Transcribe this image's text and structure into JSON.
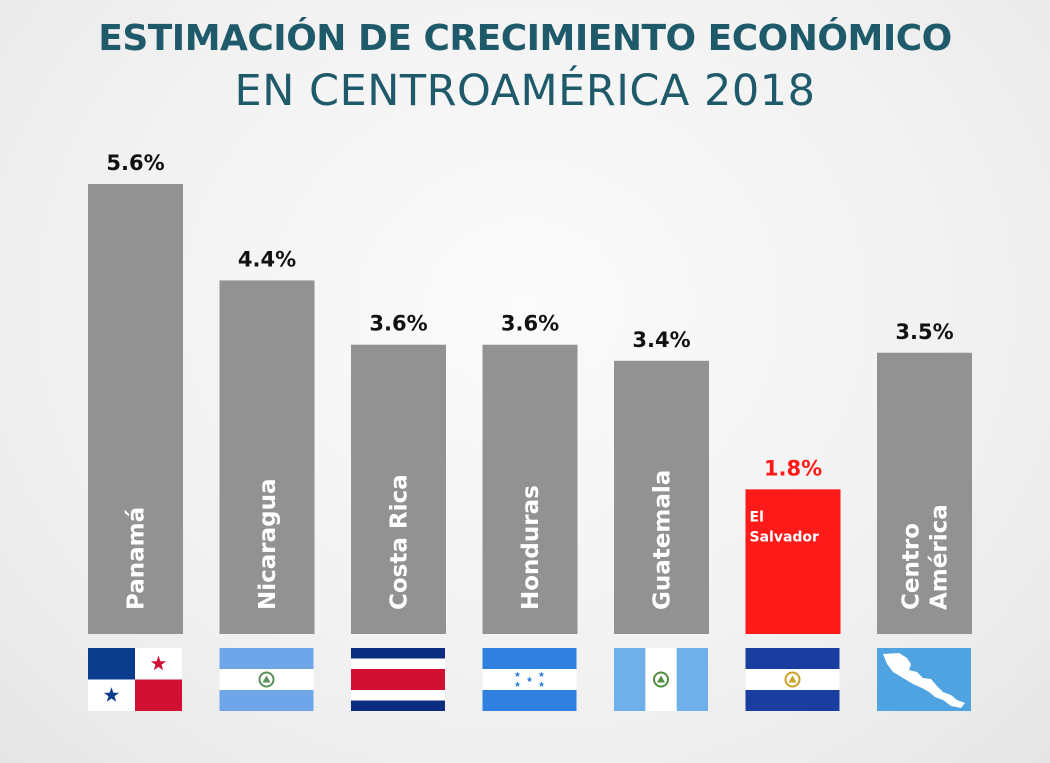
{
  "colors": {
    "title": "#1f5a6a",
    "bar": "#929292",
    "highlight": "#ff1a1a",
    "value_text": "#111111",
    "highlight_text": "#ff1a1a",
    "bar_label": "#ffffff"
  },
  "chart_data": {
    "type": "bar",
    "title": "ESTIMACIÓN DE CRECIMIENTO ECONÓMICO",
    "subtitle": "EN CENTROAMÉRICA 2018",
    "xlabel": "",
    "ylabel": "",
    "ylim": [
      0,
      5.6
    ],
    "categories": [
      "Panamá",
      "Nicaragua",
      "Costa Rica",
      "Honduras",
      "Guatemala",
      "El Salvador",
      "Centro América"
    ],
    "label_lines": [
      [
        "Panamá"
      ],
      [
        "Nicaragua"
      ],
      [
        "Costa Rica"
      ],
      [
        "Honduras"
      ],
      [
        "Guatemala"
      ],
      [
        "El",
        "Salvador"
      ],
      [
        "Centro",
        "América"
      ]
    ],
    "values": [
      5.6,
      4.4,
      3.6,
      3.6,
      3.4,
      1.8,
      3.5
    ],
    "value_labels": [
      "5.6%",
      "4.4%",
      "3.6%",
      "3.6%",
      "3.4%",
      "1.8%",
      "3.5%"
    ],
    "highlight": [
      "El Salvador"
    ],
    "flags": [
      "panama-flag-icon",
      "nicaragua-flag-icon",
      "costa-rica-flag-icon",
      "honduras-flag-icon",
      "guatemala-flag-icon",
      "el-salvador-flag-icon",
      "central-america-map-icon"
    ]
  }
}
